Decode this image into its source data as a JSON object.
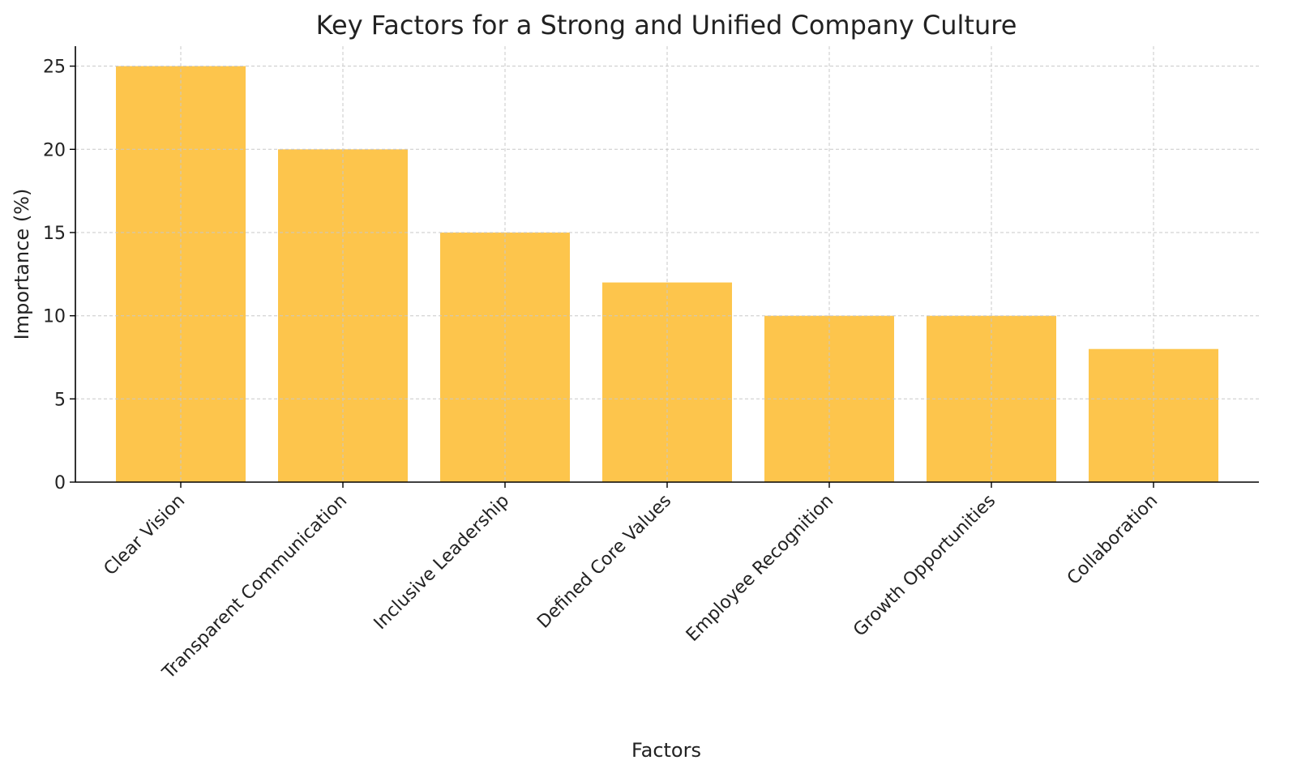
{
  "chart_data": {
    "type": "bar",
    "title": "Key Factors for a Strong and Unified Company Culture",
    "xlabel": "Factors",
    "ylabel": "Importance (%)",
    "categories": [
      "Clear Vision",
      "Transparent Communication",
      "Inclusive Leadership",
      "Defined Core Values",
      "Employee Recognition",
      "Growth Opportunities",
      "Collaboration"
    ],
    "values": [
      25,
      20,
      15,
      12,
      10,
      10,
      8
    ],
    "ylim": [
      0,
      26.2
    ],
    "yticks": [
      0,
      5,
      10,
      15,
      20,
      25
    ],
    "grid": true,
    "bar_color": "#FDC54C",
    "legend": "none"
  }
}
